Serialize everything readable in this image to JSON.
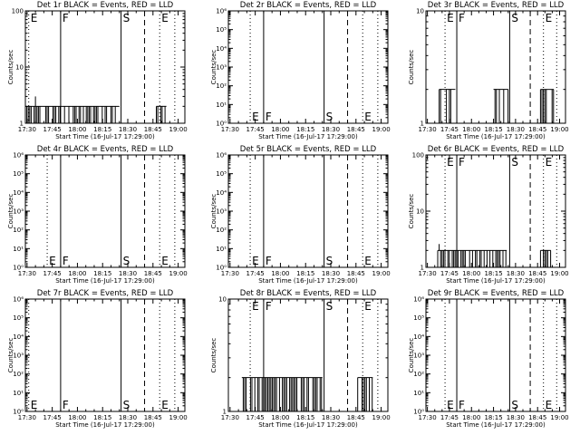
{
  "chart_data": [
    {
      "type": "bar",
      "title": "Det 1r BLACK = Events, RED = LLD",
      "xlabel": "Start Time (16-Jul-17 17:29:00)",
      "ylabel": "Counts/sec",
      "y_scale": "log",
      "ylim": [
        1,
        100
      ],
      "y_ticks": [
        {
          "v": 1,
          "t": "1"
        },
        {
          "v": 10,
          "t": "10"
        },
        {
          "v": 100,
          "t": "100"
        }
      ],
      "x_ticks": [
        "17:30",
        "17:45",
        "18:00",
        "18:15",
        "18:30",
        "18:45",
        "19:00"
      ],
      "xlim_minutes": [
        0,
        95
      ],
      "marker_lines": [
        {
          "min": 2,
          "style": "dotted",
          "label": "E"
        },
        {
          "min": 21,
          "style": "solid",
          "label": "F"
        },
        {
          "min": 57,
          "style": "solid",
          "label": "S"
        },
        {
          "min": 71,
          "style": "dashed",
          "label": ""
        },
        {
          "min": 80,
          "style": "dotted",
          "label": "E"
        },
        {
          "min": 89,
          "style": "dotted",
          "label": ""
        }
      ],
      "marker_label_pos": "top",
      "events_segments": [
        {
          "start": 0,
          "end": 56,
          "level": 2,
          "spikes": [
            {
              "at": 6,
              "level": 3
            }
          ]
        },
        {
          "start": 78,
          "end": 84,
          "level": 2
        }
      ]
    },
    {
      "type": "bar",
      "title": "Det 2r BLACK = Events, RED = LLD",
      "xlabel": "Start Time (16-Jul-17 17:29:00)",
      "ylabel": "Counts/sec",
      "y_scale": "log",
      "ylim": [
        1,
        1000000
      ],
      "y_ticks": [
        {
          "v": 1,
          "t": "10⁰"
        },
        {
          "v": 10,
          "t": "10¹"
        },
        {
          "v": 100,
          "t": "10²"
        },
        {
          "v": 1000,
          "t": "10³"
        },
        {
          "v": 10000,
          "t": "10⁴"
        },
        {
          "v": 100000,
          "t": "10⁵"
        },
        {
          "v": 1000000,
          "t": "10⁶"
        }
      ],
      "x_ticks": [
        "17:30",
        "17:45",
        "18:00",
        "18:15",
        "18:30",
        "18:45",
        "19:00"
      ],
      "xlim_minutes": [
        0,
        95
      ],
      "marker_lines": [
        {
          "min": 13,
          "style": "dotted",
          "label": "E"
        },
        {
          "min": 21,
          "style": "solid",
          "label": "F"
        },
        {
          "min": 57,
          "style": "solid",
          "label": "S"
        },
        {
          "min": 71,
          "style": "dashed",
          "label": ""
        },
        {
          "min": 80,
          "style": "dotted",
          "label": "E"
        },
        {
          "min": 89,
          "style": "dotted",
          "label": ""
        }
      ],
      "marker_label_pos": "bottom",
      "events_segments": []
    },
    {
      "type": "bar",
      "title": "Det 3r BLACK = Events, RED = LLD",
      "xlabel": "Start Time (16-Jul-17 17:29:00)",
      "ylabel": "Counts/sec",
      "y_scale": "log",
      "ylim": [
        1,
        10
      ],
      "y_ticks": [
        {
          "v": 1,
          "t": "1"
        },
        {
          "v": 10,
          "t": "10"
        }
      ],
      "x_ticks": [
        "17:30",
        "17:45",
        "18:00",
        "18:15",
        "18:30",
        "18:45",
        "19:00"
      ],
      "xlim_minutes": [
        0,
        95
      ],
      "marker_lines": [
        {
          "min": 13,
          "style": "dotted",
          "label": "E"
        },
        {
          "min": 21,
          "style": "solid",
          "label": "F"
        },
        {
          "min": 57,
          "style": "solid",
          "label": "S"
        },
        {
          "min": 71,
          "style": "dashed",
          "label": ""
        },
        {
          "min": 80,
          "style": "dotted",
          "label": "E"
        },
        {
          "min": 89,
          "style": "dotted",
          "label": ""
        }
      ],
      "marker_label_pos": "top",
      "events_segments": [
        {
          "start": 9,
          "end": 20,
          "level": 2
        },
        {
          "start": 46,
          "end": 56,
          "level": 2
        },
        {
          "start": 78,
          "end": 87,
          "level": 2
        }
      ]
    },
    {
      "type": "bar",
      "title": "Det 4r BLACK = Events, RED = LLD",
      "xlabel": "Start Time (16-Jul-17 17:29:00)",
      "ylabel": "Counts/sec",
      "y_scale": "log",
      "ylim": [
        1,
        1000000
      ],
      "y_ticks": [
        {
          "v": 1,
          "t": "10⁰"
        },
        {
          "v": 10,
          "t": "10¹"
        },
        {
          "v": 100,
          "t": "10²"
        },
        {
          "v": 1000,
          "t": "10³"
        },
        {
          "v": 10000,
          "t": "10⁴"
        },
        {
          "v": 100000,
          "t": "10⁵"
        },
        {
          "v": 1000000,
          "t": "10⁶"
        }
      ],
      "x_ticks": [
        "17:30",
        "17:45",
        "18:00",
        "18:15",
        "18:30",
        "18:45",
        "19:00"
      ],
      "xlim_minutes": [
        0,
        95
      ],
      "marker_lines": [
        {
          "min": 13,
          "style": "dotted",
          "label": "E"
        },
        {
          "min": 21,
          "style": "solid",
          "label": "F"
        },
        {
          "min": 57,
          "style": "solid",
          "label": "S"
        },
        {
          "min": 71,
          "style": "dashed",
          "label": ""
        },
        {
          "min": 80,
          "style": "dotted",
          "label": "E"
        },
        {
          "min": 89,
          "style": "dotted",
          "label": ""
        }
      ],
      "marker_label_pos": "bottom",
      "events_segments": []
    },
    {
      "type": "bar",
      "title": "Det 5r BLACK = Events, RED = LLD",
      "xlabel": "Start Time (16-Jul-17 17:29:00)",
      "ylabel": "Counts/sec",
      "y_scale": "log",
      "ylim": [
        1,
        1000000
      ],
      "y_ticks": [
        {
          "v": 1,
          "t": "10⁰"
        },
        {
          "v": 10,
          "t": "10¹"
        },
        {
          "v": 100,
          "t": "10²"
        },
        {
          "v": 1000,
          "t": "10³"
        },
        {
          "v": 10000,
          "t": "10⁴"
        },
        {
          "v": 100000,
          "t": "10⁵"
        },
        {
          "v": 1000000,
          "t": "10⁶"
        }
      ],
      "x_ticks": [
        "17:30",
        "17:45",
        "18:00",
        "18:15",
        "18:30",
        "18:45",
        "19:00"
      ],
      "xlim_minutes": [
        0,
        95
      ],
      "marker_lines": [
        {
          "min": 13,
          "style": "dotted",
          "label": "E"
        },
        {
          "min": 21,
          "style": "solid",
          "label": "F"
        },
        {
          "min": 57,
          "style": "solid",
          "label": "S"
        },
        {
          "min": 71,
          "style": "dashed",
          "label": ""
        },
        {
          "min": 80,
          "style": "dotted",
          "label": "E"
        },
        {
          "min": 89,
          "style": "dotted",
          "label": ""
        }
      ],
      "marker_label_pos": "bottom",
      "events_segments": []
    },
    {
      "type": "bar",
      "title": "Det 6r BLACK = Events, RED = LLD",
      "xlabel": "Start Time (16-Jul-17 17:29:00)",
      "ylabel": "Counts/sec",
      "y_scale": "log",
      "ylim": [
        1,
        100
      ],
      "y_ticks": [
        {
          "v": 1,
          "t": "1"
        },
        {
          "v": 10,
          "t": "10"
        },
        {
          "v": 100,
          "t": "100"
        }
      ],
      "x_ticks": [
        "17:30",
        "17:45",
        "18:00",
        "18:15",
        "18:30",
        "18:45",
        "19:00"
      ],
      "xlim_minutes": [
        0,
        95
      ],
      "marker_lines": [
        {
          "min": 13,
          "style": "dotted",
          "label": "E"
        },
        {
          "min": 21,
          "style": "solid",
          "label": "F"
        },
        {
          "min": 57,
          "style": "solid",
          "label": "S"
        },
        {
          "min": 71,
          "style": "dashed",
          "label": ""
        },
        {
          "min": 80,
          "style": "dotted",
          "label": "E"
        },
        {
          "min": 89,
          "style": "dotted",
          "label": ""
        }
      ],
      "marker_label_pos": "top",
      "events_segments": [
        {
          "start": 8,
          "end": 55,
          "level": 2,
          "spikes": [
            {
              "at": 9,
              "level": 2.6
            }
          ]
        },
        {
          "start": 78,
          "end": 85,
          "level": 2
        }
      ]
    },
    {
      "type": "bar",
      "title": "Det 7r BLACK = Events, RED = LLD",
      "xlabel": "Start Time (16-Jul-17 17:29:00)",
      "ylabel": "Counts/sec",
      "y_scale": "log",
      "ylim": [
        1,
        1000000
      ],
      "y_ticks": [
        {
          "v": 1,
          "t": "10⁰"
        },
        {
          "v": 10,
          "t": "10¹"
        },
        {
          "v": 100,
          "t": "10²"
        },
        {
          "v": 1000,
          "t": "10³"
        },
        {
          "v": 10000,
          "t": "10⁴"
        },
        {
          "v": 100000,
          "t": "10⁵"
        },
        {
          "v": 1000000,
          "t": "10⁶"
        }
      ],
      "x_ticks": [
        "17:30",
        "17:45",
        "18:00",
        "18:15",
        "18:30",
        "18:45",
        "19:00"
      ],
      "xlim_minutes": [
        0,
        95
      ],
      "marker_lines": [
        {
          "min": 2,
          "style": "dotted",
          "label": "E"
        },
        {
          "min": 21,
          "style": "solid",
          "label": "F"
        },
        {
          "min": 57,
          "style": "solid",
          "label": "S"
        },
        {
          "min": 71,
          "style": "dashed",
          "label": ""
        },
        {
          "min": 80,
          "style": "dotted",
          "label": "E"
        },
        {
          "min": 89,
          "style": "dotted",
          "label": ""
        }
      ],
      "marker_label_pos": "bottom",
      "events_segments": []
    },
    {
      "type": "bar",
      "title": "Det 8r BLACK = Events, RED = LLD",
      "xlabel": "Start Time (16-Jul-17 17:29:00)",
      "ylabel": "Counts/sec",
      "y_scale": "log",
      "ylim": [
        1,
        10
      ],
      "y_ticks": [
        {
          "v": 1,
          "t": "1"
        },
        {
          "v": 10,
          "t": "10"
        }
      ],
      "x_ticks": [
        "17:30",
        "17:45",
        "18:00",
        "18:15",
        "18:30",
        "18:45",
        "19:00"
      ],
      "xlim_minutes": [
        0,
        95
      ],
      "marker_lines": [
        {
          "min": 13,
          "style": "dotted",
          "label": "E"
        },
        {
          "min": 21,
          "style": "solid",
          "label": "F"
        },
        {
          "min": 57,
          "style": "solid",
          "label": "S"
        },
        {
          "min": 71,
          "style": "dashed",
          "label": ""
        },
        {
          "min": 80,
          "style": "dotted",
          "label": "E"
        },
        {
          "min": 89,
          "style": "dotted",
          "label": ""
        }
      ],
      "marker_label_pos": "top",
      "events_segments": [
        {
          "start": 8,
          "end": 56,
          "level": 2
        },
        {
          "start": 77,
          "end": 86,
          "level": 2
        }
      ]
    },
    {
      "type": "bar",
      "title": "Det 9r BLACK = Events, RED = LLD",
      "xlabel": "Start Time (16-Jul-17 17:29:00)",
      "ylabel": "Counts/sec",
      "y_scale": "log",
      "ylim": [
        1,
        1000000
      ],
      "y_ticks": [
        {
          "v": 1,
          "t": "10⁰"
        },
        {
          "v": 10,
          "t": "10¹"
        },
        {
          "v": 100,
          "t": "10²"
        },
        {
          "v": 1000,
          "t": "10³"
        },
        {
          "v": 10000,
          "t": "10⁴"
        },
        {
          "v": 100000,
          "t": "10⁵"
        },
        {
          "v": 1000000,
          "t": "10⁶"
        }
      ],
      "x_ticks": [
        "17:30",
        "17:45",
        "18:00",
        "18:15",
        "18:30",
        "18:45",
        "19:00"
      ],
      "xlim_minutes": [
        0,
        95
      ],
      "marker_lines": [
        {
          "min": 13,
          "style": "dotted",
          "label": "E"
        },
        {
          "min": 21,
          "style": "solid",
          "label": "F"
        },
        {
          "min": 57,
          "style": "solid",
          "label": "S"
        },
        {
          "min": 71,
          "style": "dashed",
          "label": ""
        },
        {
          "min": 80,
          "style": "dotted",
          "label": "E"
        },
        {
          "min": 89,
          "style": "dotted",
          "label": ""
        }
      ],
      "marker_label_pos": "bottom",
      "events_segments": []
    }
  ]
}
